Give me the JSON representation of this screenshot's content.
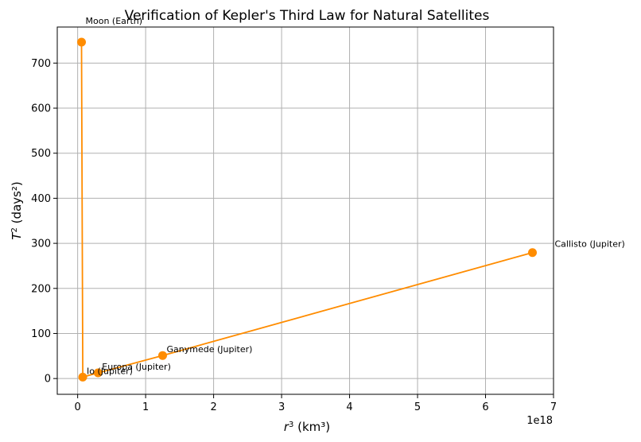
{
  "chart_data": {
    "type": "line",
    "title": "Verification of Kepler's Third Law for Natural Satellites",
    "xlabel": "r³ (km³)",
    "ylabel": "T² (days²)",
    "x_offset_label": "1e18",
    "xlim": [
      -0.3,
      7.0
    ],
    "ylim": [
      -35,
      780
    ],
    "xticks": [
      0,
      1,
      2,
      3,
      4,
      5,
      6,
      7
    ],
    "yticks": [
      0,
      100,
      200,
      300,
      400,
      500,
      600,
      700
    ],
    "grid": true,
    "color": "#ff8c00",
    "points": [
      {
        "label": "Moon (Earth)",
        "x": 0.057,
        "y": 746.5
      },
      {
        "label": "Io (Jupiter)",
        "x": 0.075,
        "y": 3.2
      },
      {
        "label": "Europa (Jupiter)",
        "x": 0.3,
        "y": 12.6
      },
      {
        "label": "Ganymede (Jupiter)",
        "x": 1.25,
        "y": 51.1
      },
      {
        "label": "Callisto (Jupiter)",
        "x": 6.69,
        "y": 279.5
      }
    ]
  }
}
